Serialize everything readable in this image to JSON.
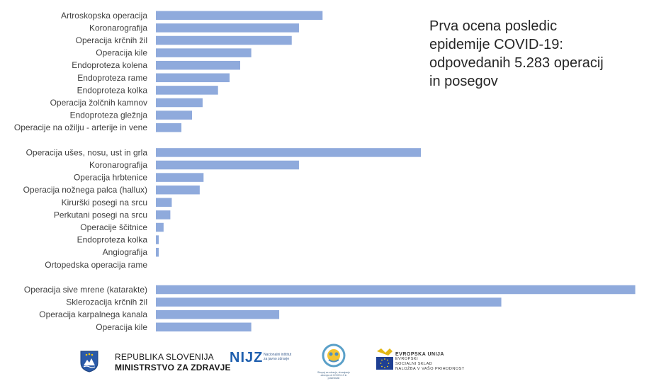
{
  "headline": {
    "line1": "Prva ocena posledic",
    "line2": "epidemije COVID-19:",
    "line3": "odpovedanih 5.283 operacij",
    "line4": "in posegov"
  },
  "chart_data": {
    "type": "bar",
    "orientation": "horizontal",
    "title": "Prva ocena posledic epidemije COVID-19: odpovedanih 5.283 operacij in posegov",
    "xlabel": "",
    "ylabel": "",
    "grid": false,
    "xlim": [
      0,
      100
    ],
    "value_scale": "relative (no axis shown)",
    "groups": [
      {
        "categories": [
          "Artroskopska operacija",
          "Koronarografija",
          "Operacija krčnih žil",
          "Operacija kile",
          "Endoproteza  kolena",
          "Endoproteza  rame",
          "Endoproteza  kolka",
          "Operacija žolčnih kamnov",
          "Endoproteza  gležnja",
          "Operacije na ožilju - arterije in vene"
        ],
        "values": [
          34.6,
          29.7,
          28.2,
          19.8,
          17.5,
          15.3,
          12.9,
          9.7,
          7.5,
          5.3
        ]
      },
      {
        "categories": [
          "Operacija ušes, nosu, ust in grla",
          "Koronarografija",
          "Operacija hrbtenice",
          "Operacija nožnega palca (hallux)",
          "Kirurški posegi na srcu",
          "Perkutani posegi na srcu",
          "Operacije ščitnice",
          "Endoproteza  kolka",
          "Angiografija",
          "Ortopedska operacija rame"
        ],
        "values": [
          55.0,
          29.7,
          9.9,
          9.1,
          3.3,
          3.0,
          1.6,
          0.6,
          0.6,
          0
        ]
      },
      {
        "categories": [
          "Operacija sive mrene (katarakte)",
          "Sklerozacija krčnih žil",
          "Operacija karpalnega kanala",
          "Operacija kile"
        ],
        "values": [
          99.5,
          71.7,
          25.6,
          19.8
        ]
      }
    ]
  },
  "footer": {
    "rs_line1": "REPUBLIKA SLOVENIJA",
    "rs_line2": "MINISTRSTVO ZA ZDRAVJE",
    "nijz_mark": "NIJZ",
    "nijz_sub1": "Nacionalni inštitut",
    "nijz_sub2": "za javno zdravje",
    "covid_caption": "Skupaj za zdravje, ohranjanje zdravja ob COVID-19 in posledicah",
    "eu_line1": "EVROPSKA UNIJA",
    "eu_line2": "EVROPSKI",
    "eu_line3": "SOCIALNI SKLAD",
    "eu_line4": "NALOŽBA V VAŠO PRIHODNOST"
  },
  "colors": {
    "bar": "#8faadc",
    "text": "#404040",
    "nijz_blue": "#1f5fae",
    "eu_blue": "#1e3f93",
    "eu_gold": "#e2b714"
  }
}
